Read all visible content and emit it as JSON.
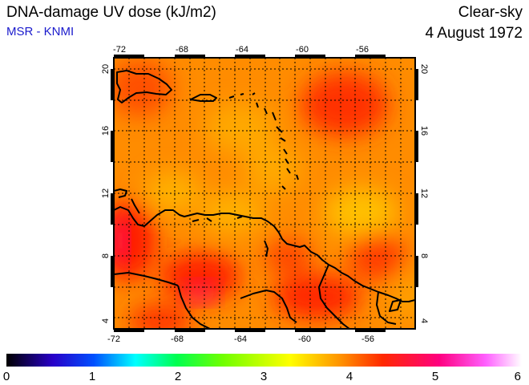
{
  "header": {
    "title": "DNA-damage UV dose (kJ/m2)",
    "source": "MSR - KNMI",
    "condition": "Clear-sky",
    "date": "4 August 1972"
  },
  "map": {
    "lon_range": [
      -73,
      -53
    ],
    "lat_range": [
      3.5,
      20.5
    ],
    "lon_ticks": [
      "-72",
      "-68",
      "-64",
      "-60",
      "-56"
    ],
    "lat_ticks": [
      "20",
      "16",
      "12",
      "8",
      "4"
    ],
    "colors": {
      "dominant": "#ff8c00",
      "high": "#ff2a00",
      "low": "#ffc000",
      "coast": "#000000"
    }
  },
  "colorbar": {
    "min": 0,
    "max": 6,
    "labels": [
      "0",
      "1",
      "2",
      "3",
      "4",
      "5",
      "6"
    ],
    "stops": [
      "#000000",
      "#2800c8",
      "#0050ff",
      "#00ffff",
      "#00ff50",
      "#70ff00",
      "#ffff00",
      "#ff9000",
      "#ff2800",
      "#ff0080",
      "#ff60ff",
      "#ffffff"
    ]
  }
}
